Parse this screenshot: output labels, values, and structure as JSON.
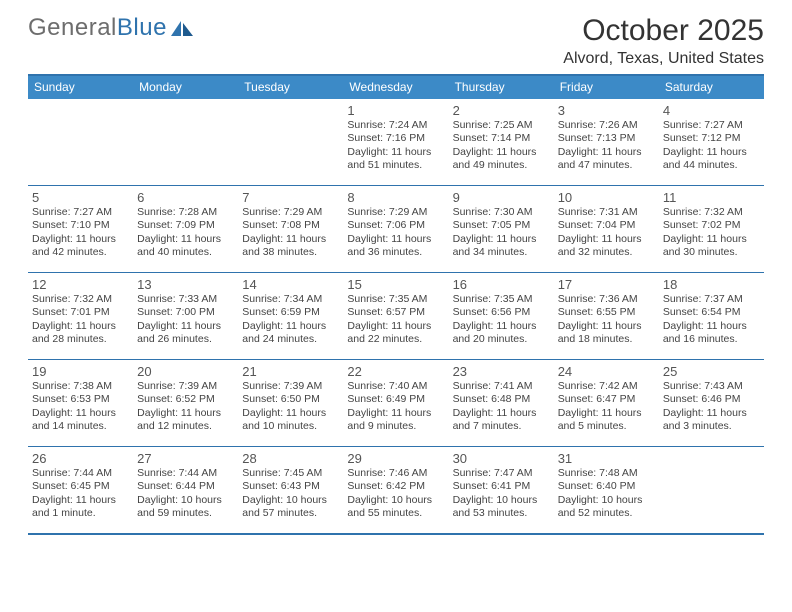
{
  "logo": {
    "part1": "General",
    "part2": "Blue"
  },
  "header": {
    "title": "October 2025",
    "location": "Alvord, Texas, United States"
  },
  "weekdays": [
    "Sunday",
    "Monday",
    "Tuesday",
    "Wednesday",
    "Thursday",
    "Friday",
    "Saturday"
  ],
  "colors": {
    "header_bg": "#3c8ac7",
    "rule": "#2f73ad",
    "text": "#333333",
    "logo_gray": "#6d6d6d"
  },
  "layout": {
    "first_weekday_index": 3,
    "days_in_month": 31
  },
  "days": [
    {
      "n": "1",
      "sr": "Sunrise: 7:24 AM",
      "ss": "Sunset: 7:16 PM",
      "d1": "Daylight: 11 hours",
      "d2": "and 51 minutes."
    },
    {
      "n": "2",
      "sr": "Sunrise: 7:25 AM",
      "ss": "Sunset: 7:14 PM",
      "d1": "Daylight: 11 hours",
      "d2": "and 49 minutes."
    },
    {
      "n": "3",
      "sr": "Sunrise: 7:26 AM",
      "ss": "Sunset: 7:13 PM",
      "d1": "Daylight: 11 hours",
      "d2": "and 47 minutes."
    },
    {
      "n": "4",
      "sr": "Sunrise: 7:27 AM",
      "ss": "Sunset: 7:12 PM",
      "d1": "Daylight: 11 hours",
      "d2": "and 44 minutes."
    },
    {
      "n": "5",
      "sr": "Sunrise: 7:27 AM",
      "ss": "Sunset: 7:10 PM",
      "d1": "Daylight: 11 hours",
      "d2": "and 42 minutes."
    },
    {
      "n": "6",
      "sr": "Sunrise: 7:28 AM",
      "ss": "Sunset: 7:09 PM",
      "d1": "Daylight: 11 hours",
      "d2": "and 40 minutes."
    },
    {
      "n": "7",
      "sr": "Sunrise: 7:29 AM",
      "ss": "Sunset: 7:08 PM",
      "d1": "Daylight: 11 hours",
      "d2": "and 38 minutes."
    },
    {
      "n": "8",
      "sr": "Sunrise: 7:29 AM",
      "ss": "Sunset: 7:06 PM",
      "d1": "Daylight: 11 hours",
      "d2": "and 36 minutes."
    },
    {
      "n": "9",
      "sr": "Sunrise: 7:30 AM",
      "ss": "Sunset: 7:05 PM",
      "d1": "Daylight: 11 hours",
      "d2": "and 34 minutes."
    },
    {
      "n": "10",
      "sr": "Sunrise: 7:31 AM",
      "ss": "Sunset: 7:04 PM",
      "d1": "Daylight: 11 hours",
      "d2": "and 32 minutes."
    },
    {
      "n": "11",
      "sr": "Sunrise: 7:32 AM",
      "ss": "Sunset: 7:02 PM",
      "d1": "Daylight: 11 hours",
      "d2": "and 30 minutes."
    },
    {
      "n": "12",
      "sr": "Sunrise: 7:32 AM",
      "ss": "Sunset: 7:01 PM",
      "d1": "Daylight: 11 hours",
      "d2": "and 28 minutes."
    },
    {
      "n": "13",
      "sr": "Sunrise: 7:33 AM",
      "ss": "Sunset: 7:00 PM",
      "d1": "Daylight: 11 hours",
      "d2": "and 26 minutes."
    },
    {
      "n": "14",
      "sr": "Sunrise: 7:34 AM",
      "ss": "Sunset: 6:59 PM",
      "d1": "Daylight: 11 hours",
      "d2": "and 24 minutes."
    },
    {
      "n": "15",
      "sr": "Sunrise: 7:35 AM",
      "ss": "Sunset: 6:57 PM",
      "d1": "Daylight: 11 hours",
      "d2": "and 22 minutes."
    },
    {
      "n": "16",
      "sr": "Sunrise: 7:35 AM",
      "ss": "Sunset: 6:56 PM",
      "d1": "Daylight: 11 hours",
      "d2": "and 20 minutes."
    },
    {
      "n": "17",
      "sr": "Sunrise: 7:36 AM",
      "ss": "Sunset: 6:55 PM",
      "d1": "Daylight: 11 hours",
      "d2": "and 18 minutes."
    },
    {
      "n": "18",
      "sr": "Sunrise: 7:37 AM",
      "ss": "Sunset: 6:54 PM",
      "d1": "Daylight: 11 hours",
      "d2": "and 16 minutes."
    },
    {
      "n": "19",
      "sr": "Sunrise: 7:38 AM",
      "ss": "Sunset: 6:53 PM",
      "d1": "Daylight: 11 hours",
      "d2": "and 14 minutes."
    },
    {
      "n": "20",
      "sr": "Sunrise: 7:39 AM",
      "ss": "Sunset: 6:52 PM",
      "d1": "Daylight: 11 hours",
      "d2": "and 12 minutes."
    },
    {
      "n": "21",
      "sr": "Sunrise: 7:39 AM",
      "ss": "Sunset: 6:50 PM",
      "d1": "Daylight: 11 hours",
      "d2": "and 10 minutes."
    },
    {
      "n": "22",
      "sr": "Sunrise: 7:40 AM",
      "ss": "Sunset: 6:49 PM",
      "d1": "Daylight: 11 hours",
      "d2": "and 9 minutes."
    },
    {
      "n": "23",
      "sr": "Sunrise: 7:41 AM",
      "ss": "Sunset: 6:48 PM",
      "d1": "Daylight: 11 hours",
      "d2": "and 7 minutes."
    },
    {
      "n": "24",
      "sr": "Sunrise: 7:42 AM",
      "ss": "Sunset: 6:47 PM",
      "d1": "Daylight: 11 hours",
      "d2": "and 5 minutes."
    },
    {
      "n": "25",
      "sr": "Sunrise: 7:43 AM",
      "ss": "Sunset: 6:46 PM",
      "d1": "Daylight: 11 hours",
      "d2": "and 3 minutes."
    },
    {
      "n": "26",
      "sr": "Sunrise: 7:44 AM",
      "ss": "Sunset: 6:45 PM",
      "d1": "Daylight: 11 hours",
      "d2": "and 1 minute."
    },
    {
      "n": "27",
      "sr": "Sunrise: 7:44 AM",
      "ss": "Sunset: 6:44 PM",
      "d1": "Daylight: 10 hours",
      "d2": "and 59 minutes."
    },
    {
      "n": "28",
      "sr": "Sunrise: 7:45 AM",
      "ss": "Sunset: 6:43 PM",
      "d1": "Daylight: 10 hours",
      "d2": "and 57 minutes."
    },
    {
      "n": "29",
      "sr": "Sunrise: 7:46 AM",
      "ss": "Sunset: 6:42 PM",
      "d1": "Daylight: 10 hours",
      "d2": "and 55 minutes."
    },
    {
      "n": "30",
      "sr": "Sunrise: 7:47 AM",
      "ss": "Sunset: 6:41 PM",
      "d1": "Daylight: 10 hours",
      "d2": "and 53 minutes."
    },
    {
      "n": "31",
      "sr": "Sunrise: 7:48 AM",
      "ss": "Sunset: 6:40 PM",
      "d1": "Daylight: 10 hours",
      "d2": "and 52 minutes."
    }
  ]
}
